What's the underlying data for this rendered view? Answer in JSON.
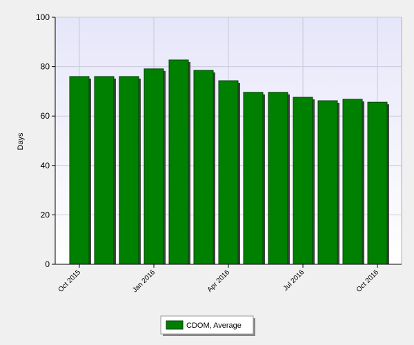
{
  "chart_data": {
    "type": "bar",
    "y_label": "Days",
    "categories": [
      "Oct 2015",
      null,
      null,
      "Jan 2016",
      null,
      null,
      "Apr 2016",
      null,
      null,
      "Jul 2016",
      null,
      null,
      "Oct 2016"
    ],
    "series": [
      {
        "name": "CDOM, Average",
        "color": "#008000",
        "values": [
          76.0,
          76.0,
          76.0,
          79.1,
          82.7,
          78.5,
          74.3,
          69.6,
          69.6,
          67.6,
          66.2,
          66.8,
          65.6
        ]
      }
    ],
    "ylim": [
      0,
      100
    ],
    "yticks": [
      0,
      20,
      40,
      60,
      80,
      100
    ],
    "grid": true,
    "legend": "bottom"
  }
}
